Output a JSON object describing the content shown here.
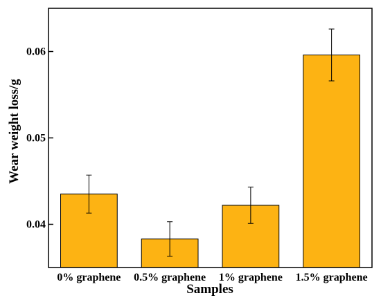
{
  "chart_data": {
    "type": "bar",
    "title": "",
    "xlabel": "Samples",
    "ylabel": "Wear weight loss/g",
    "categories": [
      "0% graphene",
      "0.5% graphene",
      "1% graphene",
      "1.5% graphene"
    ],
    "values": [
      0.0435,
      0.0383,
      0.0422,
      0.0596
    ],
    "errors": [
      0.0022,
      0.002,
      0.0021,
      0.003
    ],
    "ylim": [
      0.035,
      0.065
    ],
    "yticks": [
      0.04,
      0.05,
      0.06
    ],
    "ytick_labels": [
      "0.04",
      "0.05",
      "0.06"
    ],
    "bar_color": "#FDB313",
    "bar_edge_color": "#000000",
    "grid": false,
    "legend": "none"
  }
}
